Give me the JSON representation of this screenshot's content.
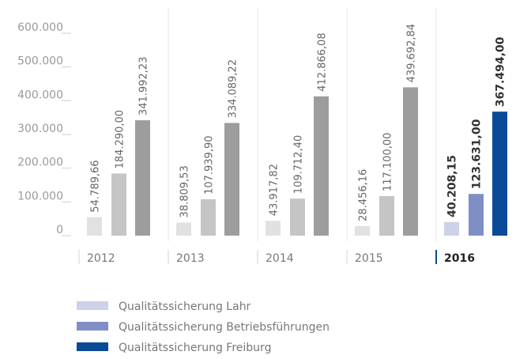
{
  "chart_data": {
    "type": "bar",
    "categories": [
      "2012",
      "2013",
      "2014",
      "2015",
      "2016"
    ],
    "series": [
      {
        "name": "Qualitätssicherung Lahr",
        "color": "#cdd1ea",
        "bar_colors": [
          "#e1e1e1",
          "#e1e1e1",
          "#e1e1e1",
          "#e1e1e1",
          "#cdd1ea"
        ],
        "values": [
          54789.66,
          38809.53,
          43917.82,
          28456.16,
          40208.15
        ],
        "value_labels": [
          "54.789,66",
          "38.809,53",
          "43.917,82",
          "28.456,16",
          "40.208,15"
        ]
      },
      {
        "name": "Qualitätssicherung Betriebsführungen",
        "color": "#7f8ec4",
        "bar_colors": [
          "#c5c5c5",
          "#c5c5c5",
          "#c5c5c5",
          "#c5c5c5",
          "#7f8ec4"
        ],
        "values": [
          184290.0,
          107939.9,
          109712.4,
          117100.0,
          123631.0
        ],
        "value_labels": [
          "184.290,00",
          "107.939,90",
          "109.712,40",
          "117.100,00",
          "123.631,00"
        ]
      },
      {
        "name": "Qualitätssicherung Freiburg",
        "color": "#0b4a97",
        "bar_colors": [
          "#9d9d9d",
          "#9d9d9d",
          "#9d9d9d",
          "#9d9d9d",
          "#0b4a97"
        ],
        "values": [
          341992.23,
          334089.22,
          412866.08,
          439692.84,
          367494.0
        ],
        "value_labels": [
          "341.992,23",
          "334.089,22",
          "412.866,08",
          "439.692,84",
          "367.494,00"
        ]
      }
    ],
    "ylim": [
      0,
      600000
    ],
    "yticks": [
      0,
      {
        "value": 100000,
        "label": "100.000"
      },
      {
        "value": 200000,
        "label": "200.000"
      },
      {
        "value": 300000,
        "label": "300.000"
      },
      {
        "value": 400000,
        "label": "400.000"
      },
      {
        "value": 500000,
        "label": "500.000"
      },
      {
        "value": 600000,
        "label": "600.000"
      }
    ]
  }
}
